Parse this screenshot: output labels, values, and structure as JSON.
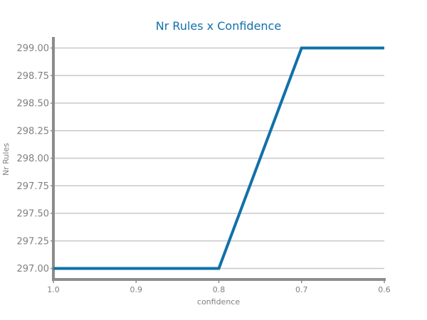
{
  "chart_data": {
    "type": "line",
    "title": "Nr Rules x Confidence",
    "xlabel": "confidence",
    "ylabel": "Nr Rules",
    "x_reversed": true,
    "xlim": [
      1.0,
      0.6
    ],
    "ylim": [
      296.9,
      299.1
    ],
    "x_ticks": [
      "1.0",
      "0.9",
      "0.8",
      "0.7",
      "0.6"
    ],
    "y_ticks": [
      "297.00",
      "297.25",
      "297.50",
      "297.75",
      "298.00",
      "298.25",
      "298.50",
      "298.75",
      "299.00"
    ],
    "grid": true,
    "series": [
      {
        "x": [
          1.0,
          0.9,
          0.8,
          0.7,
          0.6
        ],
        "y": [
          297,
          297,
          297,
          299,
          299
        ]
      }
    ]
  },
  "colors": {
    "line": "#1170aa",
    "title": "#1170aa",
    "grid": "#c8c8c8",
    "axis": "#8c8c8c",
    "text": "#808080"
  }
}
